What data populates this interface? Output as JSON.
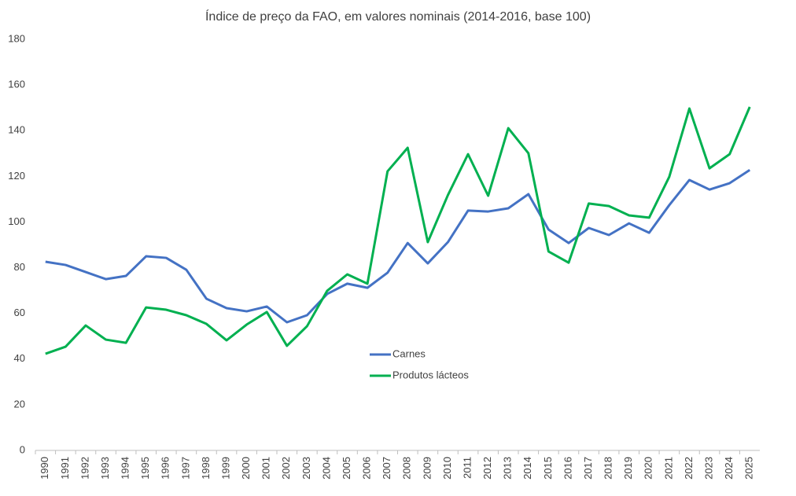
{
  "chart_data": {
    "type": "line",
    "title": "Índice de preço da FAO, em valores nominais (2014-2016, base 100)",
    "categories": [
      "1990",
      "1991",
      "1992",
      "1993",
      "1994",
      "1995",
      "1996",
      "1997",
      "1998",
      "1999",
      "2000",
      "2001",
      "2002",
      "2003",
      "2004",
      "2005",
      "2006",
      "2007",
      "2008",
      "2009",
      "2010",
      "2011",
      "2012",
      "2013",
      "2014",
      "2015",
      "2016",
      "2017",
      "2018",
      "2019",
      "2020",
      "2021",
      "2022",
      "2023",
      "2024",
      "2025"
    ],
    "series": [
      {
        "name": "Carnes",
        "color": "#4472c4",
        "values": [
          82.6,
          81.2,
          78.1,
          75.0,
          76.4,
          85.0,
          84.3,
          79.1,
          66.4,
          62.3,
          60.9,
          63.0,
          56.1,
          59.2,
          68.5,
          73.0,
          71.2,
          77.8,
          90.8,
          81.9,
          91.2,
          105.0,
          104.6,
          106.0,
          112.2,
          96.7,
          90.8,
          97.4,
          94.3,
          99.4,
          95.3,
          107.4,
          118.4,
          114.2,
          117.0,
          122.8
        ]
      },
      {
        "name": "Produtos lácteos",
        "color": "#00b050",
        "values": [
          42.3,
          45.4,
          54.7,
          48.5,
          47.1,
          62.6,
          61.6,
          59.2,
          55.4,
          48.2,
          55.1,
          60.6,
          45.8,
          54.4,
          69.9,
          77.1,
          73.0,
          122.2,
          132.5,
          91.2,
          111.8,
          129.7,
          111.5,
          141.1,
          130.1,
          87.1,
          82.2,
          108.1,
          107.0,
          102.9,
          101.9,
          119.8,
          149.7,
          123.5,
          129.7,
          150.4
        ]
      }
    ],
    "ylim": [
      0,
      180
    ],
    "yticks": [
      0,
      20,
      40,
      60,
      80,
      100,
      120,
      140,
      160,
      180
    ],
    "grid": false
  }
}
